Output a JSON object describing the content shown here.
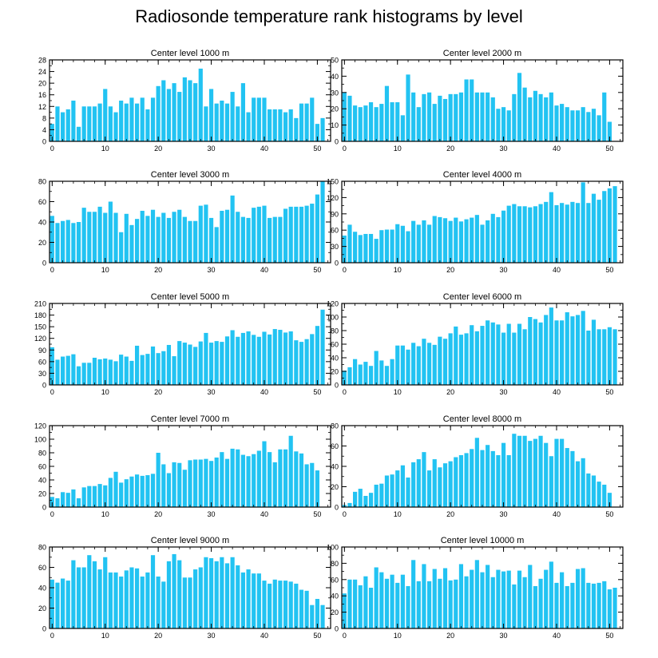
{
  "title": "Radiosonde temperature rank histograms by level",
  "colors": {
    "bar": "#22c3f2",
    "axis": "#000000"
  },
  "chart_data": [
    {
      "type": "bar",
      "title": "Center level 1000 m",
      "xlabel": "",
      "ylabel": "",
      "xlim": [
        -0.5,
        52.5
      ],
      "ylim": [
        0,
        28
      ],
      "xticks": [
        0,
        10,
        20,
        30,
        40,
        50
      ],
      "yticks": [
        0,
        4,
        8,
        12,
        16,
        20,
        24,
        28
      ],
      "x": [
        0,
        1,
        2,
        3,
        4,
        5,
        6,
        7,
        8,
        9,
        10,
        11,
        12,
        13,
        14,
        15,
        16,
        17,
        18,
        19,
        20,
        21,
        22,
        23,
        24,
        25,
        26,
        27,
        28,
        29,
        30,
        31,
        32,
        33,
        34,
        35,
        36,
        37,
        38,
        39,
        40,
        41,
        42,
        43,
        44,
        45,
        46,
        47,
        48,
        49,
        50,
        51
      ],
      "values": [
        6,
        12,
        10,
        11,
        14,
        5,
        12,
        12,
        12,
        13,
        18,
        12,
        10,
        14,
        13,
        15,
        13,
        15,
        11,
        15,
        19,
        21,
        18,
        20,
        17,
        22,
        21,
        20,
        25,
        12,
        18,
        13,
        14,
        13,
        17,
        12,
        20,
        10,
        15,
        15,
        15,
        11,
        11,
        11,
        10,
        11,
        8,
        13,
        13,
        15,
        6,
        8
      ]
    },
    {
      "type": "bar",
      "title": "Center level 2000 m",
      "xlabel": "",
      "ylabel": "",
      "xlim": [
        -0.5,
        52.5
      ],
      "ylim": [
        0,
        50
      ],
      "xticks": [
        0,
        10,
        20,
        30,
        40,
        50
      ],
      "yticks": [
        0,
        10,
        20,
        30,
        40,
        50
      ],
      "x": [
        0,
        1,
        2,
        3,
        4,
        5,
        6,
        7,
        8,
        9,
        10,
        11,
        12,
        13,
        14,
        15,
        16,
        17,
        18,
        19,
        20,
        21,
        22,
        23,
        24,
        25,
        26,
        27,
        28,
        29,
        30,
        31,
        32,
        33,
        34,
        35,
        36,
        37,
        38,
        39,
        40,
        41,
        42,
        43,
        44,
        45,
        46,
        47,
        48,
        49,
        50,
        51
      ],
      "values": [
        30,
        28,
        22,
        21,
        22,
        24,
        21,
        23,
        34,
        24,
        24,
        16,
        41,
        30,
        21,
        29,
        30,
        23,
        28,
        26,
        29,
        29,
        30,
        38,
        38,
        30,
        30,
        30,
        27,
        20,
        21,
        19,
        29,
        42,
        33,
        27,
        31,
        29,
        27,
        30,
        22,
        23,
        21,
        19,
        19,
        21,
        18,
        20,
        16,
        30,
        12,
        0
      ]
    },
    {
      "type": "bar",
      "title": "Center level 3000 m",
      "xlabel": "",
      "ylabel": "",
      "xlim": [
        -0.5,
        52.5
      ],
      "ylim": [
        0,
        80
      ],
      "xticks": [
        0,
        10,
        20,
        30,
        40,
        50
      ],
      "yticks": [
        0,
        20,
        40,
        60,
        80
      ],
      "x": [
        0,
        1,
        2,
        3,
        4,
        5,
        6,
        7,
        8,
        9,
        10,
        11,
        12,
        13,
        14,
        15,
        16,
        17,
        18,
        19,
        20,
        21,
        22,
        23,
        24,
        25,
        26,
        27,
        28,
        29,
        30,
        31,
        32,
        33,
        34,
        35,
        36,
        37,
        38,
        39,
        40,
        41,
        42,
        43,
        44,
        45,
        46,
        47,
        48,
        49,
        50,
        51
      ],
      "values": [
        46,
        39,
        41,
        42,
        39,
        40,
        54,
        50,
        50,
        55,
        49,
        60,
        49,
        30,
        48,
        37,
        43,
        51,
        46,
        52,
        45,
        49,
        44,
        50,
        52,
        45,
        41,
        41,
        56,
        57,
        44,
        35,
        51,
        52,
        66,
        50,
        45,
        44,
        54,
        55,
        56,
        44,
        45,
        45,
        53,
        55,
        55,
        55,
        56,
        58,
        67,
        80
      ]
    },
    {
      "type": "bar",
      "title": "Center level 4000 m",
      "xlabel": "",
      "ylabel": "",
      "xlim": [
        -0.5,
        52.5
      ],
      "ylim": [
        0,
        150
      ],
      "xticks": [
        0,
        10,
        20,
        30,
        40,
        50
      ],
      "yticks": [
        0,
        30,
        60,
        90,
        120,
        150
      ],
      "x": [
        0,
        1,
        2,
        3,
        4,
        5,
        6,
        7,
        8,
        9,
        10,
        11,
        12,
        13,
        14,
        15,
        16,
        17,
        18,
        19,
        20,
        21,
        22,
        23,
        24,
        25,
        26,
        27,
        28,
        29,
        30,
        31,
        32,
        33,
        34,
        35,
        36,
        37,
        38,
        39,
        40,
        41,
        42,
        43,
        44,
        45,
        46,
        47,
        48,
        49,
        50,
        51
      ],
      "values": [
        50,
        70,
        57,
        51,
        53,
        53,
        44,
        60,
        61,
        61,
        71,
        68,
        58,
        77,
        70,
        78,
        70,
        86,
        84,
        82,
        77,
        83,
        76,
        80,
        83,
        88,
        70,
        78,
        90,
        84,
        96,
        105,
        108,
        104,
        104,
        102,
        104,
        108,
        112,
        130,
        106,
        110,
        107,
        112,
        110,
        148,
        110,
        127,
        116,
        132,
        137,
        141
      ]
    },
    {
      "type": "bar",
      "title": "Center level 5000 m",
      "xlabel": "",
      "ylabel": "",
      "xlim": [
        -0.5,
        52.5
      ],
      "ylim": [
        0,
        210
      ],
      "xticks": [
        0,
        10,
        20,
        30,
        40,
        50
      ],
      "yticks": [
        0,
        30,
        60,
        90,
        120,
        150,
        180,
        210
      ],
      "x": [
        0,
        1,
        2,
        3,
        4,
        5,
        6,
        7,
        8,
        9,
        10,
        11,
        12,
        13,
        14,
        15,
        16,
        17,
        18,
        19,
        20,
        21,
        22,
        23,
        24,
        25,
        26,
        27,
        28,
        29,
        30,
        31,
        32,
        33,
        34,
        35,
        36,
        37,
        38,
        39,
        40,
        41,
        42,
        43,
        44,
        45,
        46,
        47,
        48,
        49,
        50,
        51
      ],
      "values": [
        97,
        65,
        73,
        75,
        79,
        48,
        57,
        57,
        70,
        66,
        68,
        65,
        61,
        78,
        73,
        62,
        101,
        77,
        80,
        99,
        82,
        87,
        103,
        74,
        113,
        109,
        104,
        98,
        112,
        134,
        109,
        113,
        111,
        125,
        141,
        124,
        134,
        138,
        129,
        124,
        137,
        130,
        144,
        142,
        135,
        138,
        115,
        111,
        118,
        131,
        152,
        194
      ]
    },
    {
      "type": "bar",
      "title": "Center level 6000 m",
      "xlabel": "",
      "ylabel": "",
      "xlim": [
        -0.5,
        52.5
      ],
      "ylim": [
        0,
        120
      ],
      "xticks": [
        0,
        10,
        20,
        30,
        40,
        50
      ],
      "yticks": [
        0,
        20,
        40,
        60,
        80,
        100,
        120
      ],
      "x": [
        0,
        1,
        2,
        3,
        4,
        5,
        6,
        7,
        8,
        9,
        10,
        11,
        12,
        13,
        14,
        15,
        16,
        17,
        18,
        19,
        20,
        21,
        22,
        23,
        24,
        25,
        26,
        27,
        28,
        29,
        30,
        31,
        32,
        33,
        34,
        35,
        36,
        37,
        38,
        39,
        40,
        41,
        42,
        43,
        44,
        45,
        46,
        47,
        48,
        49,
        50,
        51
      ],
      "values": [
        21,
        26,
        38,
        30,
        34,
        28,
        50,
        36,
        28,
        38,
        58,
        58,
        52,
        62,
        57,
        68,
        62,
        59,
        71,
        68,
        76,
        86,
        74,
        76,
        88,
        79,
        87,
        95,
        92,
        89,
        77,
        90,
        77,
        90,
        82,
        100,
        97,
        92,
        103,
        114,
        95,
        95,
        107,
        101,
        103,
        109,
        80,
        96,
        82,
        82,
        85,
        82
      ]
    },
    {
      "type": "bar",
      "title": "Center level 7000 m",
      "xlabel": "",
      "ylabel": "",
      "xlim": [
        -0.5,
        52.5
      ],
      "ylim": [
        0,
        120
      ],
      "xticks": [
        0,
        10,
        20,
        30,
        40,
        50
      ],
      "yticks": [
        0,
        20,
        40,
        60,
        80,
        100,
        120
      ],
      "x": [
        0,
        1,
        2,
        3,
        4,
        5,
        6,
        7,
        8,
        9,
        10,
        11,
        12,
        13,
        14,
        15,
        16,
        17,
        18,
        19,
        20,
        21,
        22,
        23,
        24,
        25,
        26,
        27,
        28,
        29,
        30,
        31,
        32,
        33,
        34,
        35,
        36,
        37,
        38,
        39,
        40,
        41,
        42,
        43,
        44,
        45,
        46,
        47,
        48,
        49,
        50,
        51
      ],
      "values": [
        15,
        13,
        22,
        21,
        26,
        13,
        29,
        31,
        31,
        34,
        32,
        43,
        52,
        36,
        41,
        45,
        48,
        46,
        47,
        49,
        80,
        63,
        50,
        66,
        65,
        55,
        69,
        70,
        70,
        71,
        68,
        73,
        81,
        71,
        86,
        85,
        77,
        75,
        78,
        83,
        97,
        81,
        66,
        85,
        85,
        105,
        82,
        79,
        63,
        65,
        54,
        0
      ]
    },
    {
      "type": "bar",
      "title": "Center level 8000 m",
      "xlabel": "",
      "ylabel": "",
      "xlim": [
        -0.5,
        52.5
      ],
      "ylim": [
        0,
        80
      ],
      "xticks": [
        0,
        10,
        20,
        30,
        40,
        50
      ],
      "yticks": [
        0,
        20,
        40,
        60,
        80
      ],
      "x": [
        0,
        1,
        2,
        3,
        4,
        5,
        6,
        7,
        8,
        9,
        10,
        11,
        12,
        13,
        14,
        15,
        16,
        17,
        18,
        19,
        20,
        21,
        22,
        23,
        24,
        25,
        26,
        27,
        28,
        29,
        30,
        31,
        32,
        33,
        34,
        35,
        36,
        37,
        38,
        39,
        40,
        41,
        42,
        43,
        44,
        45,
        46,
        47,
        48,
        49,
        50,
        51
      ],
      "values": [
        2,
        4,
        15,
        18,
        11,
        14,
        22,
        23,
        31,
        32,
        36,
        41,
        29,
        44,
        47,
        54,
        36,
        47,
        39,
        43,
        45,
        49,
        51,
        53,
        57,
        68,
        56,
        61,
        55,
        51,
        63,
        51,
        72,
        70,
        70,
        65,
        67,
        70,
        63,
        50,
        67,
        67,
        58,
        55,
        45,
        48,
        33,
        31,
        25,
        22,
        14,
        0
      ]
    },
    {
      "type": "bar",
      "title": "Center level 9000 m",
      "xlabel": "",
      "ylabel": "",
      "xlim": [
        -0.5,
        52.5
      ],
      "ylim": [
        0,
        80
      ],
      "xticks": [
        0,
        10,
        20,
        30,
        40,
        50
      ],
      "yticks": [
        0,
        20,
        40,
        60,
        80
      ],
      "x": [
        0,
        1,
        2,
        3,
        4,
        5,
        6,
        7,
        8,
        9,
        10,
        11,
        12,
        13,
        14,
        15,
        16,
        17,
        18,
        19,
        20,
        21,
        22,
        23,
        24,
        25,
        26,
        27,
        28,
        29,
        30,
        31,
        32,
        33,
        34,
        35,
        36,
        37,
        38,
        39,
        40,
        41,
        42,
        43,
        44,
        45,
        46,
        47,
        48,
        49,
        50,
        51
      ],
      "values": [
        48,
        45,
        49,
        47,
        67,
        60,
        60,
        72,
        66,
        58,
        70,
        55,
        55,
        51,
        57,
        60,
        59,
        51,
        55,
        72,
        51,
        46,
        66,
        73,
        67,
        50,
        50,
        58,
        60,
        70,
        69,
        66,
        70,
        64,
        70,
        62,
        55,
        58,
        54,
        54,
        47,
        44,
        48,
        47,
        47,
        46,
        44,
        38,
        37,
        23,
        29,
        23
      ]
    },
    {
      "type": "bar",
      "title": "Center level 10000 m",
      "xlabel": "",
      "ylabel": "",
      "xlim": [
        -0.5,
        52.5
      ],
      "ylim": [
        0,
        100
      ],
      "xticks": [
        0,
        10,
        20,
        30,
        40,
        50
      ],
      "yticks": [
        0,
        20,
        40,
        60,
        80,
        100
      ],
      "x": [
        0,
        1,
        2,
        3,
        4,
        5,
        6,
        7,
        8,
        9,
        10,
        11,
        12,
        13,
        14,
        15,
        16,
        17,
        18,
        19,
        20,
        21,
        22,
        23,
        24,
        25,
        26,
        27,
        28,
        29,
        30,
        31,
        32,
        33,
        34,
        35,
        36,
        37,
        38,
        39,
        40,
        41,
        42,
        43,
        44,
        45,
        46,
        47,
        48,
        49,
        50,
        51
      ],
      "values": [
        43,
        60,
        60,
        53,
        64,
        50,
        75,
        69,
        61,
        66,
        56,
        66,
        52,
        84,
        58,
        79,
        58,
        73,
        61,
        74,
        59,
        60,
        79,
        64,
        72,
        84,
        69,
        78,
        63,
        72,
        70,
        71,
        54,
        71,
        63,
        78,
        52,
        61,
        72,
        82,
        56,
        69,
        52,
        56,
        73,
        74,
        56,
        55,
        56,
        58,
        48,
        50
      ]
    }
  ]
}
